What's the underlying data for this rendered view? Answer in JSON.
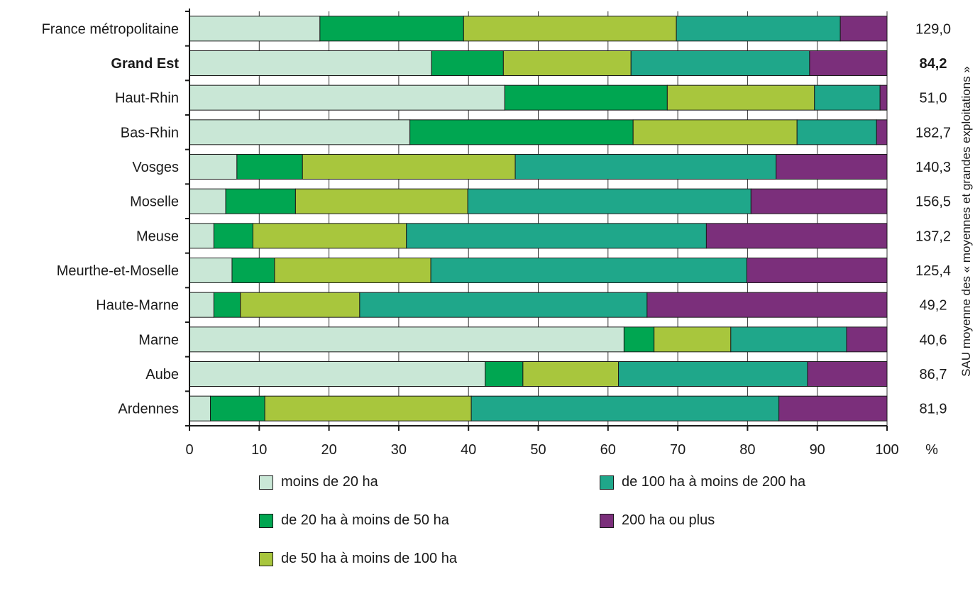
{
  "chart_data": {
    "type": "bar",
    "orientation": "horizontal",
    "stacked": true,
    "categories": [
      "France métropolitaine",
      "Grand Est",
      "Haut-Rhin",
      "Bas-Rhin",
      "Vosges",
      "Moselle",
      "Meuse",
      "Meurthe-et-Moselle",
      "Haute-Marne",
      "Marne",
      "Aube",
      "Ardennes"
    ],
    "bold_categories": [
      "Grand Est"
    ],
    "series": [
      {
        "name": "moins de 20 ha",
        "color": "#c9e7d6",
        "values": [
          18.7,
          34.7,
          45.2,
          31.6,
          6.8,
          5.2,
          3.5,
          6.1,
          3.5,
          62.3,
          42.4,
          3.0
        ]
      },
      {
        "name": "de 20 ha à moins de 50 ha",
        "color": "#00a651",
        "values": [
          20.6,
          10.3,
          23.3,
          32.0,
          9.4,
          10.0,
          5.6,
          6.1,
          3.8,
          4.3,
          5.4,
          7.8
        ]
      },
      {
        "name": "de 50 ha à moins de 100 ha",
        "color": "#a8c63d",
        "values": [
          30.5,
          18.3,
          21.1,
          23.5,
          30.5,
          24.7,
          22.0,
          22.4,
          17.1,
          11.0,
          13.7,
          29.6
        ]
      },
      {
        "name": "de 100 ha à moins de 200 ha",
        "color": "#1fa78a",
        "values": [
          23.5,
          25.6,
          9.4,
          11.4,
          37.4,
          40.6,
          43.0,
          45.3,
          41.2,
          16.6,
          27.1,
          44.1
        ]
      },
      {
        "name": "200 ha ou plus",
        "color": "#7b2f7b",
        "values": [
          6.7,
          11.1,
          1.0,
          1.5,
          15.9,
          19.5,
          25.9,
          20.1,
          34.4,
          5.8,
          11.4,
          15.5
        ]
      }
    ],
    "right_values": [
      "129,0",
      "84,2",
      "51,0",
      "182,7",
      "140,3",
      "156,5",
      "137,2",
      "125,4",
      "49,2",
      "40,6",
      "86,7",
      "81,9"
    ],
    "right_axis_label": "SAU moyenne des « moyennes et grandes exploitations »",
    "xlim": [
      0,
      100
    ],
    "xticks": [
      0,
      10,
      20,
      30,
      40,
      50,
      60,
      70,
      80,
      90,
      100
    ],
    "xtick_labels": [
      "0",
      "10",
      "20",
      "30",
      "40",
      "50",
      "60",
      "70",
      "80",
      "90",
      "100"
    ],
    "xunit": "%",
    "grid": true,
    "legend_position": "bottom"
  }
}
